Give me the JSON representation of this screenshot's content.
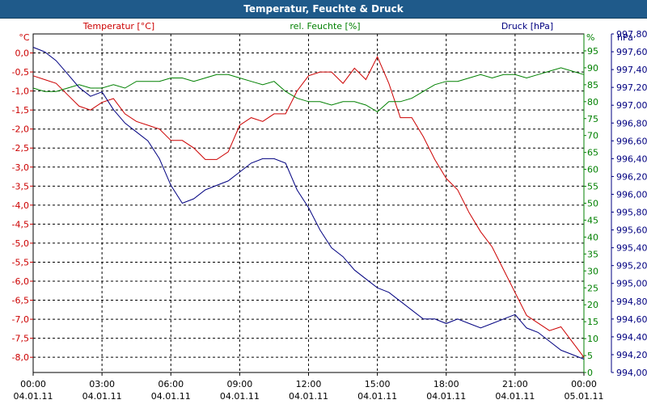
{
  "window": {
    "title": "Temperatur, Feuchte & Druck"
  },
  "chart_data": {
    "type": "line",
    "title": "Temperatur, Feuchte & Druck",
    "grid": true,
    "x": {
      "label": "",
      "range": [
        "04.01.11 00:00",
        "05.01.11 00:00"
      ],
      "ticks": [
        {
          "time": "00:00",
          "date": "04.01.11"
        },
        {
          "time": "03:00",
          "date": "04.01.11"
        },
        {
          "time": "06:00",
          "date": "04.01.11"
        },
        {
          "time": "09:00",
          "date": "04.01.11"
        },
        {
          "time": "12:00",
          "date": "04.01.11"
        },
        {
          "time": "15:00",
          "date": "04.01.11"
        },
        {
          "time": "18:00",
          "date": "04.01.11"
        },
        {
          "time": "21:00",
          "date": "04.01.11"
        },
        {
          "time": "00:00",
          "date": "05.01.11"
        }
      ]
    },
    "axes": {
      "temperature": {
        "label": "Temperatur [°C]",
        "unit": "°C",
        "color": "#cc0000",
        "ylim": [
          -8.4,
          0.5
        ],
        "ticks": [
          "0,0",
          "-0,5",
          "-1,0",
          "-1,5",
          "-2,0",
          "-2,5",
          "-3,0",
          "-3,5",
          "-4,0",
          "-4,5",
          "-5,0",
          "-5,5",
          "-6,0",
          "-6,5",
          "-7,0",
          "-7,5",
          "-8,0"
        ]
      },
      "humidity": {
        "label": "rel. Feuchte [%]",
        "unit": "%",
        "color": "#008000",
        "ylim": [
          0,
          100
        ],
        "ticks": [
          "95",
          "90",
          "85",
          "80",
          "75",
          "70",
          "65",
          "60",
          "55",
          "50",
          "45",
          "40",
          "35",
          "30",
          "25",
          "20",
          "15",
          "10",
          "5",
          "0"
        ]
      },
      "pressure": {
        "label": "Druck [hPa]",
        "unit": "hPa",
        "color": "#000080",
        "ylim": [
          994.0,
          997.8
        ],
        "ticks": [
          "997,80",
          "997,60",
          "997,40",
          "997,20",
          "997,00",
          "996,80",
          "996,60",
          "996,40",
          "996,20",
          "996,00",
          "995,80",
          "995,60",
          "995,40",
          "995,20",
          "995,00",
          "994,80",
          "994,60",
          "994,40",
          "994,20",
          "994,00"
        ]
      }
    },
    "series": [
      {
        "name": "Temperatur [°C]",
        "axis": "temperature",
        "color": "#cc0000",
        "x": [
          0,
          0.5,
          1,
          1.5,
          2,
          2.5,
          3,
          3.5,
          4,
          4.5,
          5,
          5.5,
          6,
          6.5,
          7,
          7.5,
          8,
          8.5,
          9,
          9.5,
          10,
          10.5,
          11,
          11.5,
          12,
          12.5,
          13,
          13.5,
          14,
          14.5,
          15,
          15.5,
          16,
          16.5,
          17,
          17.5,
          18,
          18.5,
          19,
          19.5,
          20,
          20.5,
          21,
          21.5,
          22,
          22.5,
          23,
          23.5,
          24
        ],
        "values": [
          -0.6,
          -0.7,
          -0.8,
          -1.1,
          -1.4,
          -1.5,
          -1.3,
          -1.2,
          -1.6,
          -1.8,
          -1.9,
          -2.0,
          -2.3,
          -2.3,
          -2.5,
          -2.8,
          -2.8,
          -2.6,
          -1.9,
          -1.7,
          -1.8,
          -1.6,
          -1.6,
          -1.0,
          -0.6,
          -0.5,
          -0.5,
          -0.8,
          -0.4,
          -0.7,
          -0.1,
          -0.8,
          -1.7,
          -1.7,
          -2.2,
          -2.8,
          -3.3,
          -3.6,
          -4.2,
          -4.7,
          -5.1,
          -5.7,
          -6.3,
          -6.9,
          -7.1,
          -7.3,
          -7.2,
          -7.6,
          -8.0
        ]
      },
      {
        "name": "rel. Feuchte [%]",
        "axis": "humidity",
        "color": "#008000",
        "x": [
          0,
          0.5,
          1,
          1.5,
          2,
          2.5,
          3,
          3.5,
          4,
          4.5,
          5,
          5.5,
          6,
          6.5,
          7,
          7.5,
          8,
          8.5,
          9,
          9.5,
          10,
          10.5,
          11,
          11.5,
          12,
          12.5,
          13,
          13.5,
          14,
          14.5,
          15,
          15.5,
          16,
          16.5,
          17,
          17.5,
          18,
          18.5,
          19,
          19.5,
          20,
          20.5,
          21,
          21.5,
          22,
          22.5,
          23,
          23.5,
          24
        ],
        "values": [
          84,
          83,
          83,
          84,
          85,
          84,
          84,
          85,
          84,
          86,
          86,
          86,
          87,
          87,
          86,
          87,
          88,
          88,
          87,
          86,
          85,
          86,
          83,
          81,
          80,
          80,
          79,
          80,
          80,
          79,
          77,
          80,
          80,
          81,
          83,
          85,
          86,
          86,
          87,
          88,
          87,
          88,
          88,
          87,
          88,
          89,
          90,
          89,
          88
        ]
      },
      {
        "name": "Druck [hPa]",
        "axis": "pressure",
        "color": "#000080",
        "x": [
          0,
          0.5,
          1,
          1.5,
          2,
          2.5,
          3,
          3.5,
          4,
          4.5,
          5,
          5.5,
          6,
          6.5,
          7,
          7.5,
          8,
          8.5,
          9,
          9.5,
          10,
          10.5,
          11,
          11.5,
          12,
          12.5,
          13,
          13.5,
          14,
          14.5,
          15,
          15.5,
          16,
          16.5,
          17,
          17.5,
          18,
          18.5,
          19,
          19.5,
          20,
          20.5,
          21,
          21.5,
          22,
          22.5,
          23,
          23.5,
          24
        ],
        "values": [
          997.65,
          997.6,
          997.5,
          997.35,
          997.2,
          997.1,
          997.15,
          996.95,
          996.8,
          996.7,
          996.6,
          996.4,
          996.1,
          995.9,
          995.95,
          996.05,
          996.1,
          996.15,
          996.25,
          996.35,
          996.4,
          996.4,
          996.35,
          996.05,
          995.85,
          995.6,
          995.4,
          995.3,
          995.15,
          995.05,
          994.95,
          994.9,
          994.8,
          994.7,
          994.6,
          994.6,
          994.55,
          994.6,
          994.55,
          994.5,
          994.55,
          994.6,
          994.65,
          994.5,
          994.45,
          994.35,
          994.25,
          994.2,
          994.15
        ]
      }
    ]
  }
}
